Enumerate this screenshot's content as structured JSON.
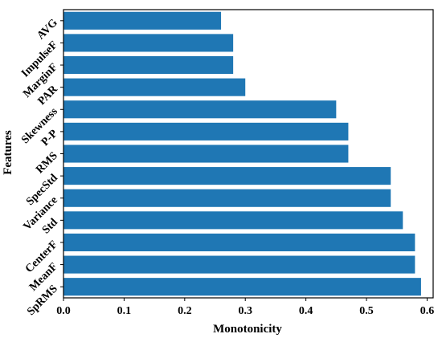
{
  "chart_data": {
    "type": "bar",
    "orientation": "horizontal",
    "title": "",
    "xlabel": "Monotonicity",
    "ylabel": "Features",
    "xlim": [
      0,
      0.61
    ],
    "xticks": [
      "0.0",
      "0.1",
      "0.2",
      "0.3",
      "0.4",
      "0.5",
      "0.6"
    ],
    "grid": false,
    "bar_color": "#1f77b4",
    "categories": [
      "SpRMS",
      "MeanF",
      "CenterF",
      "Std",
      "Variance",
      "SpecStd",
      "RMS",
      "P-P",
      "Skewness",
      "PAR",
      "MarginF",
      "ImpulseF",
      "AVG"
    ],
    "values": [
      0.59,
      0.58,
      0.58,
      0.56,
      0.54,
      0.54,
      0.47,
      0.47,
      0.45,
      0.3,
      0.28,
      0.28,
      0.26
    ]
  }
}
